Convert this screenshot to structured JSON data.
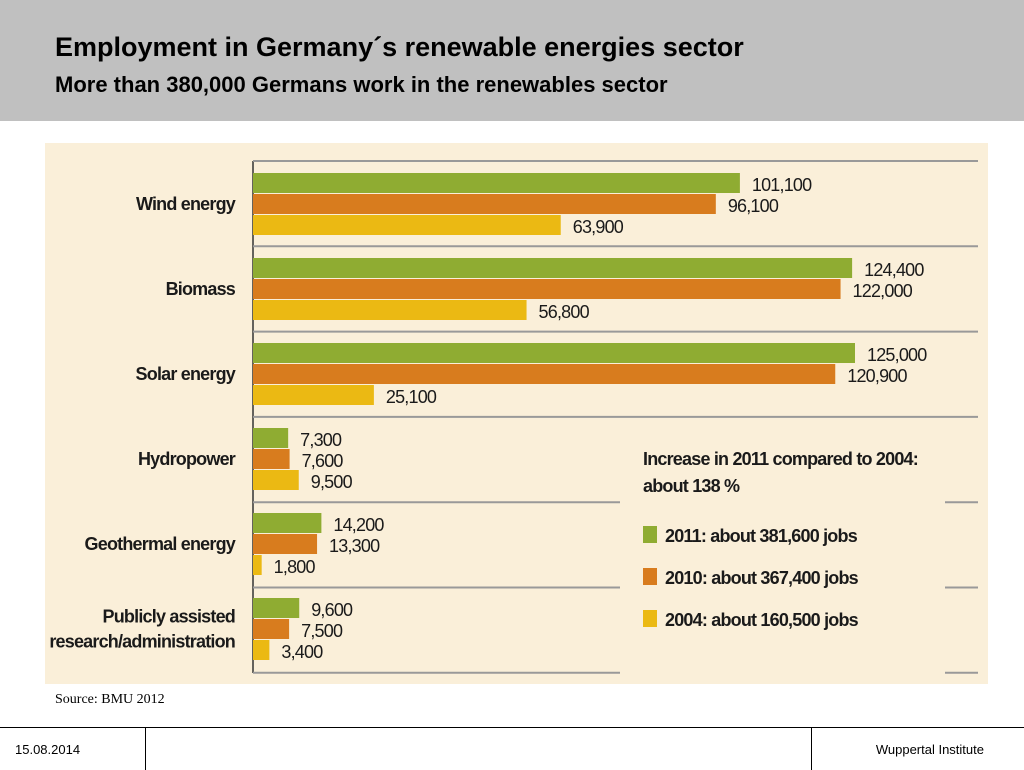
{
  "header": {
    "title": "Employment  in Germany´s renewable energies sector",
    "subtitle": "More than 380,000 Germans work in the renewables sector"
  },
  "chart_data": {
    "type": "bar",
    "orientation": "horizontal",
    "categories": [
      "Wind energy",
      "Biomass",
      "Solar energy",
      "Hydropower",
      "Geothermal energy",
      "Publicly assisted research/administration"
    ],
    "category_lines": [
      [
        "Wind energy"
      ],
      [
        "Biomass"
      ],
      [
        "Solar energy"
      ],
      [
        "Hydropower"
      ],
      [
        "Geothermal energy"
      ],
      [
        "Publicly assisted",
        "research/administration"
      ]
    ],
    "series": [
      {
        "name": "2011: about 381,600 jobs",
        "color": "#8fac32",
        "values": [
          101100,
          124400,
          125000,
          7300,
          14200,
          9600
        ],
        "labels": [
          "101,100",
          "124,400",
          "125,000",
          "7,300",
          "14,200",
          "9,600"
        ]
      },
      {
        "name": "2010: about 367,400 jobs",
        "color": "#d87c1e",
        "values": [
          96100,
          122000,
          120900,
          7600,
          13300,
          7500
        ],
        "labels": [
          "96,100",
          "122,000",
          "120,900",
          "7,600",
          "13,300",
          "7,500"
        ]
      },
      {
        "name": "2004: about 160,500 jobs",
        "color": "#ebb913",
        "values": [
          63900,
          56800,
          25100,
          9500,
          1800,
          3400
        ],
        "labels": [
          "63,900",
          "56,800",
          "25,100",
          "9,500",
          "1,800",
          "3,400"
        ]
      }
    ],
    "annotation": [
      "Increase in 2011 compared to 2004:",
      "about 138 %"
    ],
    "xlim": [
      0,
      125000
    ],
    "grid": false,
    "legend_position": "bottom-right",
    "background": "#faefd9"
  },
  "source": "Source: BMU 2012",
  "footer": {
    "date": "15.08.2014",
    "institute": "Wuppertal Institute"
  }
}
